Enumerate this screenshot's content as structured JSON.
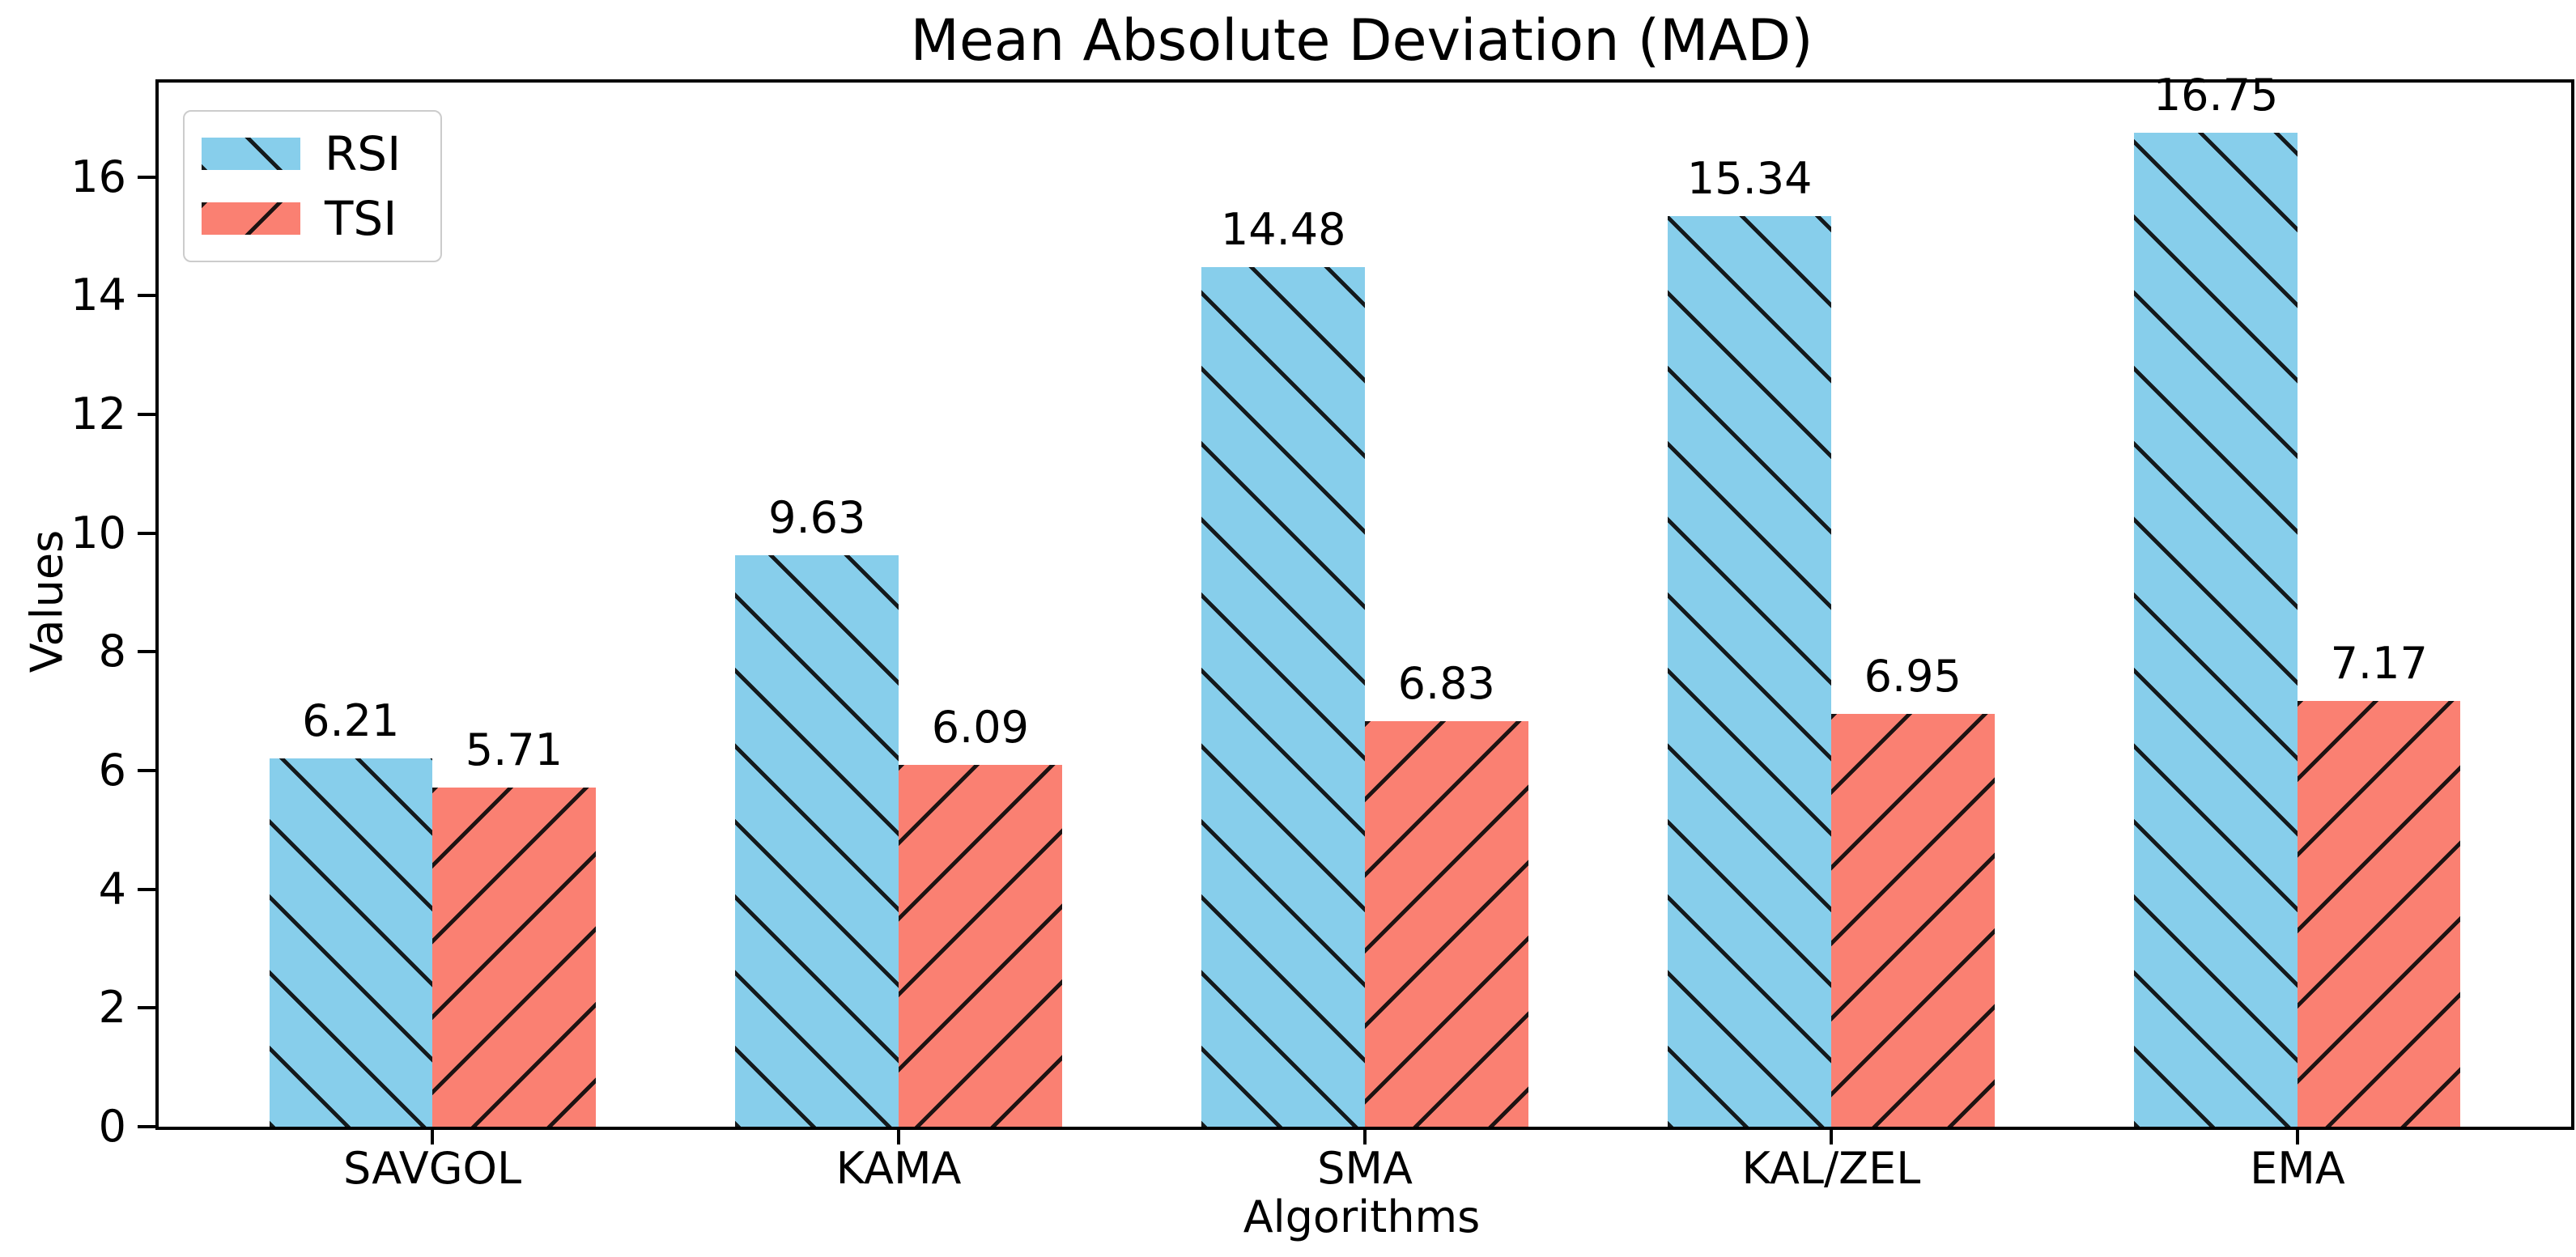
{
  "chart_data": {
    "type": "bar",
    "title": "Mean Absolute Deviation (MAD)",
    "xlabel": "Algorithms",
    "ylabel": "Values",
    "categories": [
      "SAVGOL",
      "KAMA",
      "SMA",
      "KAL/ZEL",
      "EMA"
    ],
    "series": [
      {
        "name": "RSI",
        "color": "#87CEEB",
        "hatch": "\\",
        "values": [
          6.21,
          9.63,
          14.48,
          15.34,
          16.75
        ]
      },
      {
        "name": "TSI",
        "color": "#FA8072",
        "hatch": "/",
        "values": [
          5.71,
          6.09,
          6.83,
          6.95,
          7.17
        ]
      }
    ],
    "ylim": [
      0,
      17.59
    ],
    "yticks": [
      0,
      2,
      4,
      6,
      8,
      10,
      12,
      14,
      16
    ],
    "grid": false,
    "value_labels": true,
    "legend_position": "upper left",
    "legend_entries": [
      "RSI",
      "TSI"
    ]
  },
  "style": {
    "bar_colors": {
      "RSI": "#87CEEB",
      "TSI": "#FA8072"
    },
    "hatch_color": "#0a0a0a",
    "spine_color": "#000000",
    "text_color": "#000000",
    "legend_border_color": "#cccccc",
    "background_color": "#ffffff"
  }
}
